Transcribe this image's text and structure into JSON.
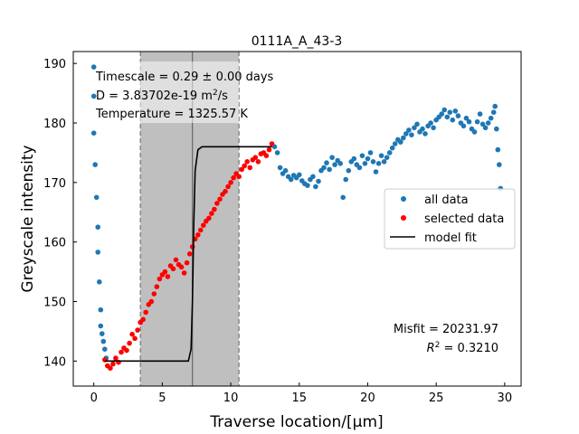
{
  "chart_data": {
    "type": "scatter",
    "title": "0111A_A_43-3",
    "xlabel": "Traverse location/[μm]",
    "ylabel": "Greyscale intensity",
    "xlim": [
      -1.5,
      31.2
    ],
    "ylim": [
      135.8,
      192.0
    ],
    "xticks": [
      0,
      5,
      10,
      15,
      20,
      25,
      30
    ],
    "yticks": [
      140,
      150,
      160,
      170,
      180,
      190
    ],
    "xtick_labels": [
      "0",
      "5",
      "10",
      "15",
      "20",
      "25",
      "30"
    ],
    "ytick_labels": [
      "140",
      "150",
      "160",
      "170",
      "180",
      "190"
    ],
    "shaded_region": {
      "x0": 3.4,
      "x1": 10.6,
      "center": 7.2,
      "color": "#bfbfbf"
    },
    "annotations": {
      "timescale": "Timescale = 0.29 ± 0.00 days",
      "diffusivity_prefix": "D = 3.83702e-19 m",
      "diffusivity_sup": "2",
      "diffusivity_suffix": "/s",
      "temperature": "Temperature = 1325.57 K",
      "misfit": "Misfit = 20231.97",
      "r2_prefix": "R",
      "r2_sup": "2",
      "r2_suffix": " = 0.3210"
    },
    "legend": {
      "placement": "center-right",
      "entries": [
        {
          "label": "all data",
          "kind": "marker",
          "color": "#1f77b4"
        },
        {
          "label": "selected data",
          "kind": "marker",
          "color": "#ff0000"
        },
        {
          "label": "model fit",
          "kind": "line",
          "color": "#000000"
        }
      ]
    },
    "series": [
      {
        "name": "all data",
        "color": "#1f77b4",
        "points": [
          [
            0.0,
            189.4
          ],
          [
            0.0,
            184.5
          ],
          [
            0.0,
            178.3
          ],
          [
            0.1,
            173.0
          ],
          [
            0.2,
            167.5
          ],
          [
            0.3,
            162.5
          ],
          [
            0.3,
            158.3
          ],
          [
            0.4,
            153.3
          ],
          [
            0.5,
            148.6
          ],
          [
            0.5,
            145.9
          ],
          [
            0.6,
            144.6
          ],
          [
            0.7,
            143.3
          ],
          [
            0.8,
            142.0
          ],
          [
            0.9,
            140.5
          ],
          [
            13.2,
            176.0
          ],
          [
            13.4,
            175.0
          ],
          [
            13.6,
            172.5
          ],
          [
            13.8,
            171.5
          ],
          [
            14.0,
            172.0
          ],
          [
            14.2,
            171.0
          ],
          [
            14.4,
            170.5
          ],
          [
            14.6,
            171.2
          ],
          [
            14.8,
            170.8
          ],
          [
            15.0,
            171.3
          ],
          [
            15.2,
            170.3
          ],
          [
            15.4,
            169.8
          ],
          [
            15.6,
            169.5
          ],
          [
            15.8,
            170.5
          ],
          [
            16.0,
            171.0
          ],
          [
            16.2,
            169.3
          ],
          [
            16.4,
            170.2
          ],
          [
            16.6,
            172.0
          ],
          [
            16.8,
            172.5
          ],
          [
            17.0,
            173.3
          ],
          [
            17.2,
            172.2
          ],
          [
            17.4,
            174.2
          ],
          [
            17.6,
            173.0
          ],
          [
            17.8,
            173.7
          ],
          [
            18.0,
            173.2
          ],
          [
            18.2,
            167.5
          ],
          [
            18.4,
            170.5
          ],
          [
            18.6,
            172.0
          ],
          [
            18.8,
            173.5
          ],
          [
            19.0,
            174.0
          ],
          [
            19.2,
            173.0
          ],
          [
            19.4,
            172.5
          ],
          [
            19.6,
            174.5
          ],
          [
            19.8,
            173.2
          ],
          [
            20.0,
            174.0
          ],
          [
            20.2,
            175.0
          ],
          [
            20.4,
            173.5
          ],
          [
            20.6,
            171.8
          ],
          [
            20.8,
            173.2
          ],
          [
            21.0,
            174.5
          ],
          [
            21.2,
            173.5
          ],
          [
            21.4,
            174.2
          ],
          [
            21.6,
            175.0
          ],
          [
            21.8,
            175.8
          ],
          [
            22.0,
            176.5
          ],
          [
            22.2,
            177.2
          ],
          [
            22.4,
            176.8
          ],
          [
            22.6,
            177.5
          ],
          [
            22.8,
            178.2
          ],
          [
            23.0,
            178.8
          ],
          [
            23.2,
            178.0
          ],
          [
            23.4,
            179.2
          ],
          [
            23.6,
            179.8
          ],
          [
            23.8,
            178.5
          ],
          [
            24.0,
            179.0
          ],
          [
            24.2,
            178.2
          ],
          [
            24.4,
            179.5
          ],
          [
            24.6,
            180.0
          ],
          [
            24.8,
            179.2
          ],
          [
            25.0,
            180.5
          ],
          [
            25.2,
            181.0
          ],
          [
            25.4,
            181.5
          ],
          [
            25.6,
            182.2
          ],
          [
            25.8,
            181.0
          ],
          [
            26.0,
            181.8
          ],
          [
            26.2,
            180.5
          ],
          [
            26.4,
            182.0
          ],
          [
            26.6,
            181.2
          ],
          [
            26.8,
            180.0
          ],
          [
            27.0,
            179.5
          ],
          [
            27.2,
            180.8
          ],
          [
            27.4,
            180.2
          ],
          [
            27.6,
            179.0
          ],
          [
            27.8,
            178.5
          ],
          [
            28.0,
            180.2
          ],
          [
            28.2,
            181.5
          ],
          [
            28.4,
            179.8
          ],
          [
            28.6,
            179.2
          ],
          [
            28.8,
            180.0
          ],
          [
            29.0,
            180.8
          ],
          [
            29.2,
            181.8
          ],
          [
            29.3,
            182.8
          ],
          [
            29.4,
            179.0
          ],
          [
            29.5,
            175.5
          ],
          [
            29.6,
            173.0
          ],
          [
            29.7,
            169.0
          ]
        ]
      },
      {
        "name": "selected data",
        "color": "#ff0000",
        "points": [
          [
            0.8,
            140.2
          ],
          [
            1.0,
            139.2
          ],
          [
            1.2,
            138.8
          ],
          [
            1.4,
            139.5
          ],
          [
            1.6,
            140.5
          ],
          [
            1.8,
            139.8
          ],
          [
            2.0,
            141.5
          ],
          [
            2.2,
            142.2
          ],
          [
            2.4,
            141.8
          ],
          [
            2.6,
            143.0
          ],
          [
            2.8,
            144.5
          ],
          [
            3.0,
            143.8
          ],
          [
            3.2,
            145.2
          ],
          [
            3.4,
            146.5
          ],
          [
            3.6,
            147.0
          ],
          [
            3.8,
            148.2
          ],
          [
            4.0,
            149.5
          ],
          [
            4.2,
            150.0
          ],
          [
            4.4,
            151.3
          ],
          [
            4.6,
            152.5
          ],
          [
            4.8,
            153.8
          ],
          [
            5.0,
            154.5
          ],
          [
            5.2,
            155.0
          ],
          [
            5.4,
            154.2
          ],
          [
            5.6,
            156.0
          ],
          [
            5.8,
            155.5
          ],
          [
            6.0,
            157.0
          ],
          [
            6.2,
            156.2
          ],
          [
            6.4,
            155.8
          ],
          [
            6.6,
            154.8
          ],
          [
            6.8,
            156.5
          ],
          [
            7.0,
            158.0
          ],
          [
            7.2,
            159.2
          ],
          [
            7.4,
            160.5
          ],
          [
            7.6,
            161.2
          ],
          [
            7.8,
            162.0
          ],
          [
            8.0,
            162.8
          ],
          [
            8.2,
            163.5
          ],
          [
            8.4,
            164.0
          ],
          [
            8.6,
            164.8
          ],
          [
            8.8,
            165.5
          ],
          [
            9.0,
            166.5
          ],
          [
            9.2,
            167.2
          ],
          [
            9.4,
            168.0
          ],
          [
            9.6,
            168.5
          ],
          [
            9.8,
            169.3
          ],
          [
            10.0,
            170.0
          ],
          [
            10.2,
            170.8
          ],
          [
            10.4,
            171.5
          ],
          [
            10.6,
            171.0
          ],
          [
            10.8,
            172.2
          ],
          [
            11.0,
            172.8
          ],
          [
            11.2,
            173.5
          ],
          [
            11.4,
            172.5
          ],
          [
            11.6,
            173.8
          ],
          [
            11.8,
            174.2
          ],
          [
            12.0,
            173.5
          ],
          [
            12.2,
            174.8
          ],
          [
            12.4,
            175.0
          ],
          [
            12.6,
            174.5
          ],
          [
            12.8,
            175.5
          ],
          [
            13.0,
            176.5
          ]
        ]
      },
      {
        "name": "model fit",
        "color": "#000000",
        "line": [
          [
            0.8,
            140.0
          ],
          [
            6.9,
            140.0
          ],
          [
            7.1,
            142.0
          ],
          [
            7.2,
            150.0
          ],
          [
            7.3,
            163.0
          ],
          [
            7.4,
            172.0
          ],
          [
            7.6,
            175.5
          ],
          [
            7.9,
            176.0
          ],
          [
            13.0,
            176.0
          ]
        ]
      }
    ]
  }
}
